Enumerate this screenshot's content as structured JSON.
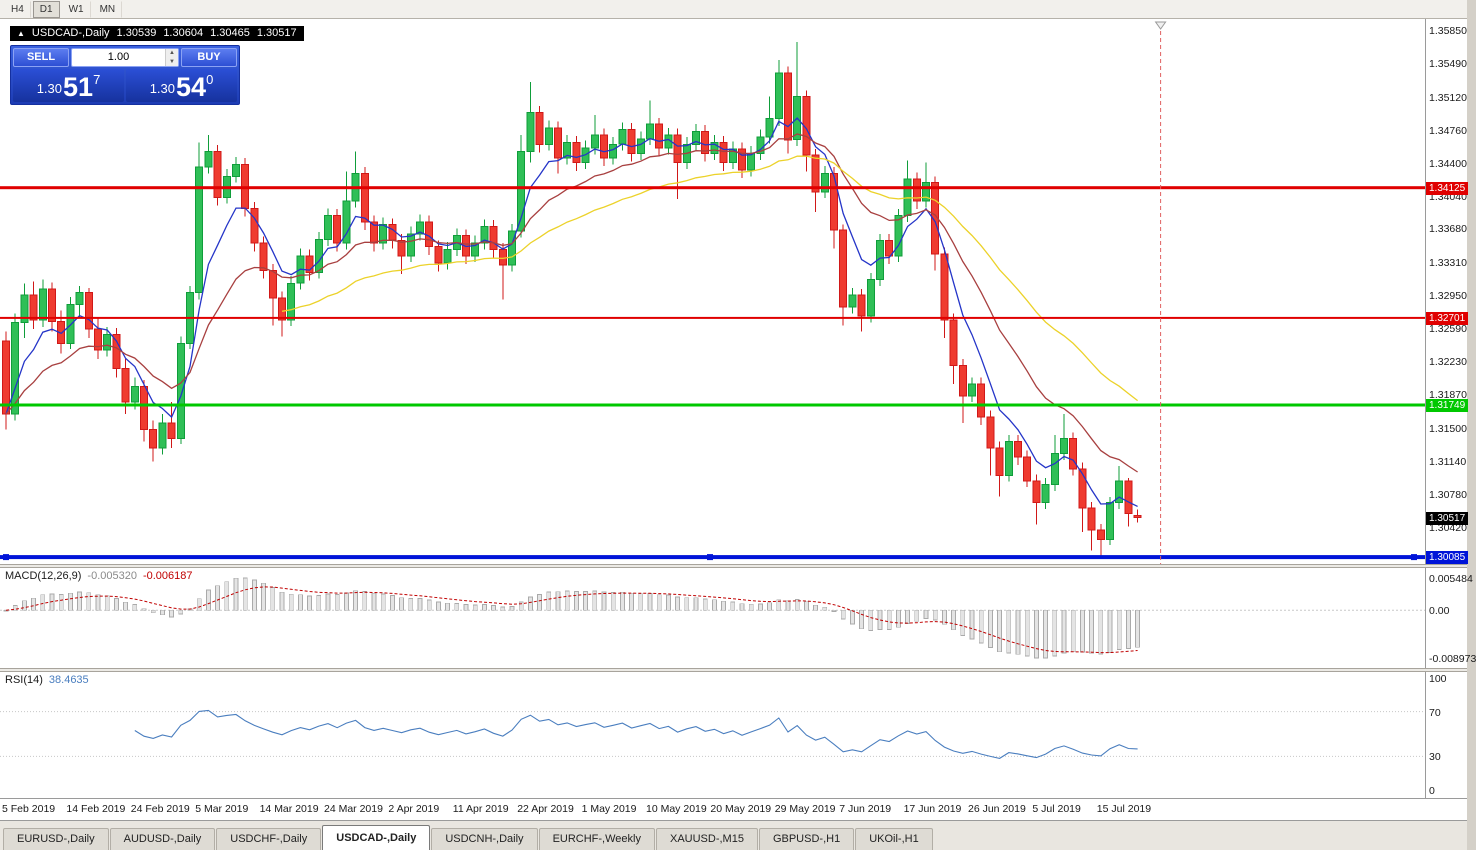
{
  "toolbar": {
    "buttons": [
      "H4",
      "D1",
      "W1",
      "MN"
    ],
    "active_index": 1
  },
  "symbol_header": {
    "collapse_icon": "▲",
    "title": "USDCAD-,Daily",
    "open": "1.30539",
    "high": "1.30604",
    "low": "1.30465",
    "close": "1.30517"
  },
  "trade_panel": {
    "sell_label": "SELL",
    "buy_label": "BUY",
    "volume": "1.00",
    "spinner_up": "▲",
    "spinner_down": "▼",
    "sell_price": {
      "base": "1.30",
      "big": "51",
      "sup": "7"
    },
    "buy_price": {
      "base": "1.30",
      "big": "54",
      "sup": "0"
    }
  },
  "chart_data": {
    "type": "candlestick",
    "symbol": "USDCAD",
    "timeframe": "Daily",
    "colors": {
      "up_fill": "#2fbf57",
      "up_stroke": "#0f9d3a",
      "down_fill": "#ef3b30",
      "down_stroke": "#d01818"
    },
    "price_axis": {
      "top_price": 1.3597,
      "bottom_price": 1.3001,
      "labels": [
        "1.35850",
        "1.35490",
        "1.35120",
        "1.34760",
        "1.34400",
        "1.34040",
        "1.33680",
        "1.33310",
        "1.32950",
        "1.32590",
        "1.32230",
        "1.31870",
        "1.31500",
        "1.31140",
        "1.30780",
        "1.30420"
      ]
    },
    "date_labels": [
      "5 Feb 2019",
      "14 Feb 2019",
      "24 Feb 2019",
      "5 Mar 2019",
      "14 Mar 2019",
      "24 Mar 2019",
      "2 Apr 2019",
      "11 Apr 2019",
      "22 Apr 2019",
      "1 May 2019",
      "10 May 2019",
      "20 May 2019",
      "29 May 2019",
      "7 Jun 2019",
      "17 Jun 2019",
      "26 Jun 2019",
      "5 Jul 2019",
      "15 Jul 2019"
    ],
    "h_lines": [
      {
        "price": 1.34125,
        "label": "1.34125",
        "color": "#e00000",
        "width": 3,
        "handles": false
      },
      {
        "price": 1.32701,
        "label": "1.32701",
        "color": "#e00000",
        "width": 2,
        "handles": false
      },
      {
        "price": 1.31749,
        "label": "1.31749",
        "color": "#00c800",
        "width": 3,
        "handles": false
      },
      {
        "price": 1.30085,
        "label": "1.30085",
        "color": "#0014d8",
        "width": 4,
        "handles": true
      }
    ],
    "current_price_tag": {
      "price": 1.30517,
      "label": "1.30517",
      "color": "#000000"
    },
    "moving_averages": [
      {
        "name": "fast-ma",
        "period": 6,
        "color": "#2535c8",
        "start_index": 0
      },
      {
        "name": "medium-ma",
        "period": 16,
        "color": "#a84040",
        "start_index": 0
      },
      {
        "name": "slow-ma",
        "period": 34,
        "color": "#ecd22a",
        "start_index": 30
      }
    ],
    "separator": {
      "x_bar": 125.5,
      "color": "#e06060"
    },
    "candles": [
      [
        1.3245,
        1.3255,
        1.3148,
        1.3165
      ],
      [
        1.3165,
        1.3275,
        1.3158,
        1.3265
      ],
      [
        1.3265,
        1.3308,
        1.3248,
        1.3295
      ],
      [
        1.3295,
        1.331,
        1.3258,
        1.3268
      ],
      [
        1.3268,
        1.3312,
        1.326,
        1.3302
      ],
      [
        1.3302,
        1.3309,
        1.3255,
        1.3266
      ],
      [
        1.3266,
        1.3278,
        1.3231,
        1.3242
      ],
      [
        1.3242,
        1.3293,
        1.3236,
        1.3285
      ],
      [
        1.3285,
        1.3305,
        1.327,
        1.3298
      ],
      [
        1.3298,
        1.3303,
        1.3248,
        1.3258
      ],
      [
        1.3258,
        1.327,
        1.3225,
        1.3235
      ],
      [
        1.3235,
        1.326,
        1.3228,
        1.3252
      ],
      [
        1.3252,
        1.3259,
        1.3205,
        1.3215
      ],
      [
        1.3215,
        1.3225,
        1.3165,
        1.3178
      ],
      [
        1.3178,
        1.3205,
        1.317,
        1.3195
      ],
      [
        1.3195,
        1.3202,
        1.3135,
        1.3148
      ],
      [
        1.3148,
        1.3158,
        1.3113,
        1.3128
      ],
      [
        1.3128,
        1.3165,
        1.3121,
        1.3155
      ],
      [
        1.3155,
        1.3178,
        1.3128,
        1.3138
      ],
      [
        1.3138,
        1.325,
        1.3132,
        1.3242
      ],
      [
        1.3242,
        1.3305,
        1.3236,
        1.3298
      ],
      [
        1.3298,
        1.3462,
        1.329,
        1.3435
      ],
      [
        1.3435,
        1.347,
        1.3428,
        1.3452
      ],
      [
        1.3452,
        1.3459,
        1.3393,
        1.3402
      ],
      [
        1.3402,
        1.3433,
        1.3395,
        1.3425
      ],
      [
        1.3425,
        1.3446,
        1.3418,
        1.3438
      ],
      [
        1.3438,
        1.3445,
        1.3381,
        1.339
      ],
      [
        1.339,
        1.3397,
        1.3343,
        1.3352
      ],
      [
        1.3352,
        1.3359,
        1.3313,
        1.3322
      ],
      [
        1.3322,
        1.3329,
        1.3262,
        1.3292
      ],
      [
        1.3292,
        1.3299,
        1.325,
        1.3268
      ],
      [
        1.3268,
        1.3316,
        1.3261,
        1.3308
      ],
      [
        1.3308,
        1.3346,
        1.3301,
        1.3338
      ],
      [
        1.3338,
        1.3345,
        1.3311,
        1.332
      ],
      [
        1.332,
        1.3364,
        1.3313,
        1.3356
      ],
      [
        1.3356,
        1.339,
        1.3349,
        1.3382
      ],
      [
        1.3382,
        1.3389,
        1.3343,
        1.3352
      ],
      [
        1.3352,
        1.343,
        1.3345,
        1.3398
      ],
      [
        1.3398,
        1.3452,
        1.3391,
        1.3428
      ],
      [
        1.3428,
        1.3435,
        1.3366,
        1.3375
      ],
      [
        1.3375,
        1.3382,
        1.3343,
        1.3352
      ],
      [
        1.3352,
        1.338,
        1.3345,
        1.3372
      ],
      [
        1.3372,
        1.3379,
        1.3346,
        1.3355
      ],
      [
        1.3355,
        1.3362,
        1.3318,
        1.3338
      ],
      [
        1.3338,
        1.337,
        1.3331,
        1.3362
      ],
      [
        1.3362,
        1.3383,
        1.3355,
        1.3375
      ],
      [
        1.3375,
        1.3382,
        1.3339,
        1.3348
      ],
      [
        1.3348,
        1.3355,
        1.3321,
        1.333
      ],
      [
        1.333,
        1.3353,
        1.3323,
        1.3345
      ],
      [
        1.3345,
        1.3368,
        1.3338,
        1.336
      ],
      [
        1.336,
        1.3367,
        1.3329,
        1.3338
      ],
      [
        1.3338,
        1.336,
        1.3331,
        1.3352
      ],
      [
        1.3352,
        1.3378,
        1.3345,
        1.337
      ],
      [
        1.337,
        1.3377,
        1.3336,
        1.3345
      ],
      [
        1.3345,
        1.3352,
        1.329,
        1.3328
      ],
      [
        1.3328,
        1.3373,
        1.3321,
        1.3365
      ],
      [
        1.3365,
        1.347,
        1.3358,
        1.3452
      ],
      [
        1.3452,
        1.3528,
        1.344,
        1.3495
      ],
      [
        1.3495,
        1.3502,
        1.3451,
        1.346
      ],
      [
        1.346,
        1.3486,
        1.3453,
        1.3478
      ],
      [
        1.3478,
        1.3485,
        1.3428,
        1.3445
      ],
      [
        1.3445,
        1.347,
        1.3438,
        1.3462
      ],
      [
        1.3462,
        1.3469,
        1.3431,
        1.344
      ],
      [
        1.344,
        1.3464,
        1.3433,
        1.3456
      ],
      [
        1.3456,
        1.3492,
        1.3449,
        1.347
      ],
      [
        1.347,
        1.3477,
        1.3436,
        1.3445
      ],
      [
        1.3445,
        1.3468,
        1.3438,
        1.346
      ],
      [
        1.346,
        1.3484,
        1.3453,
        1.3476
      ],
      [
        1.3476,
        1.3483,
        1.3441,
        1.345
      ],
      [
        1.345,
        1.3474,
        1.3443,
        1.3466
      ],
      [
        1.3466,
        1.3508,
        1.3459,
        1.3482
      ],
      [
        1.3482,
        1.3489,
        1.3447,
        1.3456
      ],
      [
        1.3456,
        1.3478,
        1.3449,
        1.347
      ],
      [
        1.347,
        1.3477,
        1.34,
        1.344
      ],
      [
        1.344,
        1.3468,
        1.3433,
        1.346
      ],
      [
        1.346,
        1.3482,
        1.3453,
        1.3474
      ],
      [
        1.3474,
        1.3481,
        1.3441,
        1.345
      ],
      [
        1.345,
        1.347,
        1.3443,
        1.3462
      ],
      [
        1.3462,
        1.3469,
        1.3431,
        1.344
      ],
      [
        1.344,
        1.3463,
        1.3433,
        1.3455
      ],
      [
        1.3455,
        1.3462,
        1.3423,
        1.3432
      ],
      [
        1.3432,
        1.3458,
        1.3425,
        1.345
      ],
      [
        1.345,
        1.3476,
        1.3443,
        1.3468
      ],
      [
        1.3468,
        1.3512,
        1.3461,
        1.3488
      ],
      [
        1.3488,
        1.3552,
        1.348,
        1.3538
      ],
      [
        1.3538,
        1.3545,
        1.345,
        1.3465
      ],
      [
        1.3465,
        1.3572,
        1.3458,
        1.3512
      ],
      [
        1.3512,
        1.3519,
        1.343,
        1.3448
      ],
      [
        1.3448,
        1.3455,
        1.3386,
        1.3408
      ],
      [
        1.3408,
        1.3436,
        1.3401,
        1.3428
      ],
      [
        1.3428,
        1.3435,
        1.3346,
        1.3366
      ],
      [
        1.3366,
        1.3372,
        1.3262,
        1.3282
      ],
      [
        1.3282,
        1.3303,
        1.3275,
        1.3295
      ],
      [
        1.3295,
        1.3302,
        1.3255,
        1.3272
      ],
      [
        1.3272,
        1.3319,
        1.3265,
        1.3312
      ],
      [
        1.3312,
        1.3362,
        1.3305,
        1.3355
      ],
      [
        1.3355,
        1.3362,
        1.3329,
        1.3338
      ],
      [
        1.3338,
        1.3389,
        1.3331,
        1.3382
      ],
      [
        1.3382,
        1.3442,
        1.3375,
        1.3422
      ],
      [
        1.3422,
        1.3429,
        1.3389,
        1.3398
      ],
      [
        1.3398,
        1.344,
        1.3391,
        1.3418
      ],
      [
        1.3418,
        1.3425,
        1.3322,
        1.334
      ],
      [
        1.334,
        1.3347,
        1.3248,
        1.3268
      ],
      [
        1.3268,
        1.3275,
        1.3198,
        1.3218
      ],
      [
        1.3218,
        1.3225,
        1.3155,
        1.3185
      ],
      [
        1.3185,
        1.3205,
        1.3178,
        1.3198
      ],
      [
        1.3198,
        1.3205,
        1.3153,
        1.3162
      ],
      [
        1.3162,
        1.3169,
        1.3098,
        1.3128
      ],
      [
        1.3128,
        1.3135,
        1.3075,
        1.3098
      ],
      [
        1.3098,
        1.3142,
        1.3091,
        1.3135
      ],
      [
        1.3135,
        1.3142,
        1.3109,
        1.3118
      ],
      [
        1.3118,
        1.3125,
        1.3085,
        1.3092
      ],
      [
        1.3092,
        1.3099,
        1.3044,
        1.3068
      ],
      [
        1.3068,
        1.3095,
        1.3061,
        1.3088
      ],
      [
        1.3088,
        1.3142,
        1.3081,
        1.3122
      ],
      [
        1.3122,
        1.3165,
        1.3115,
        1.3138
      ],
      [
        1.3138,
        1.3145,
        1.3098,
        1.3105
      ],
      [
        1.3105,
        1.3112,
        1.3036,
        1.3062
      ],
      [
        1.3062,
        1.3069,
        1.3016,
        1.3038
      ],
      [
        1.3038,
        1.3045,
        1.3008,
        1.3028
      ],
      [
        1.3028,
        1.3074,
        1.3022,
        1.3068
      ],
      [
        1.3068,
        1.3108,
        1.3061,
        1.3092
      ],
      [
        1.3092,
        1.3095,
        1.3042,
        1.3056
      ],
      [
        1.30539,
        1.30604,
        1.30465,
        1.30517
      ]
    ]
  },
  "macd": {
    "label": "MACD(12,26,9)",
    "value_main": "-0.005320",
    "value_signal": "-0.006187",
    "params": {
      "fast": 12,
      "slow": 26,
      "signal": 9
    },
    "axis_labels": [
      "0.005484",
      "0.00",
      "-0.008973"
    ],
    "histogram_fill": "#e4e4e4",
    "histogram_stroke": "#aaaaaa",
    "signal_color": "#c00000"
  },
  "rsi": {
    "label": "RSI(14)",
    "value": "38.4635",
    "period": 14,
    "axis_labels": [
      "100",
      "70",
      "30",
      "0"
    ],
    "axis_values": [
      100,
      70,
      30,
      0
    ],
    "levels": [
      70,
      30
    ],
    "line_color": "#4a7ebf"
  },
  "tabs": [
    "EURUSD-,Daily",
    "AUDUSD-,Daily",
    "USDCHF-,Daily",
    "USDCAD-,Daily",
    "USDCNH-,Daily",
    "EURCHF-,Weekly",
    "XAUUSD-,M15",
    "GBPUSD-,H1",
    "UKOil-,H1"
  ],
  "active_tab_index": 3
}
